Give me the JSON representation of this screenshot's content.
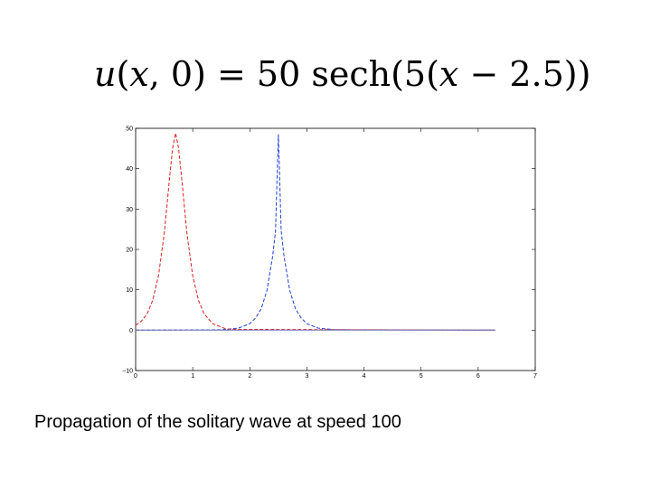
{
  "equation": {
    "lhs_func": "u",
    "lhs_open": "(",
    "lhs_var": "x",
    "lhs_rest": ", 0) = 50 sech(5(",
    "rhs_var": "x",
    "rhs_rest": " − 2.5))"
  },
  "caption": "Propagation of the solitary wave at speed 100",
  "colors": {
    "initial": "#1f3fd6",
    "propagated": "#e02020",
    "axis": "#000000",
    "baseline": "#6f6fb0"
  },
  "chart_data": {
    "type": "line",
    "title": "",
    "xlabel": "",
    "ylabel": "",
    "xlim": [
      0,
      7
    ],
    "ylim": [
      -10,
      50
    ],
    "x_ticks": [
      0,
      1,
      2,
      3,
      4,
      5,
      6,
      7
    ],
    "y_ticks": [
      -10,
      0,
      10,
      20,
      30,
      40,
      50
    ],
    "x_tick_labels": [
      "0",
      "1",
      "2",
      "3",
      "4",
      "5",
      "6",
      "7"
    ],
    "y_tick_labels": [
      "−10",
      "0",
      "10",
      "20",
      "30",
      "40",
      "50"
    ],
    "grid": false,
    "series": [
      {
        "color": "#1f3fd6",
        "style": "dashed",
        "x": [
          0,
          1.5,
          1.8,
          2.0,
          2.1,
          2.2,
          2.3,
          2.4,
          2.45,
          2.5,
          2.55,
          2.6,
          2.7,
          2.8,
          2.9,
          3.0,
          3.2,
          3.5,
          6.3
        ],
        "y": [
          0,
          0.1,
          0.5,
          1.6,
          3.0,
          5.3,
          9.8,
          18.2,
          24.5,
          48.5,
          24.5,
          18.2,
          9.8,
          5.3,
          3.0,
          1.6,
          0.5,
          0.1,
          0
        ]
      },
      {
        "color": "#e02020",
        "style": "dashed",
        "x": [
          0,
          0.1,
          0.2,
          0.3,
          0.4,
          0.5,
          0.55,
          0.6,
          0.65,
          0.7,
          0.75,
          0.8,
          0.9,
          1.0,
          1.1,
          1.2,
          1.35,
          1.6,
          6.3
        ],
        "y": [
          1.2,
          2.2,
          4.0,
          7.4,
          13.5,
          23.9,
          30.9,
          38.6,
          45.2,
          48.8,
          45.2,
          38.6,
          23.9,
          13.5,
          7.4,
          4.0,
          1.6,
          0.2,
          0
        ]
      },
      {
        "color": "#6f6fb0",
        "style": "solid",
        "x": [
          0,
          6.3
        ],
        "y": [
          0,
          0
        ]
      }
    ]
  }
}
